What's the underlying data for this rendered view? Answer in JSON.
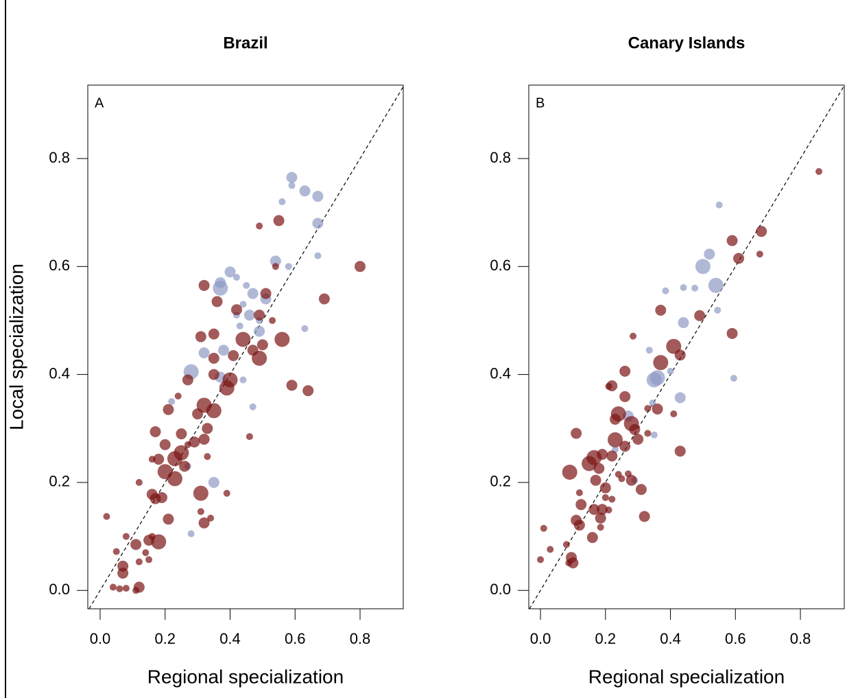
{
  "chart_data": [
    {
      "type": "scatter",
      "title": "Brazil",
      "panel_label": "A",
      "xlabel": "Regional specialization",
      "ylabel": "Local specialization",
      "xlim": [
        -0.038,
        0.933
      ],
      "ylim": [
        -0.034,
        0.936
      ],
      "xticks": [
        {
          "value": 0,
          "label": "0.0"
        },
        0.2,
        0.4,
        0.6,
        0.8
      ],
      "yticks": [
        {
          "value": 0,
          "label": "0.0"
        },
        0.2,
        0.4,
        0.6,
        0.8
      ],
      "identity_line": true,
      "alpha": 0.7,
      "series": [
        {
          "color": "#8f9ac4",
          "x": [
            0.59,
            0.63,
            0.67,
            0.59,
            0.56,
            0.67,
            0.54,
            0.58,
            0.67,
            0.4,
            0.42,
            0.37,
            0.37,
            0.45,
            0.47,
            0.51,
            0.44,
            0.42,
            0.46,
            0.49,
            0.49,
            0.43,
            0.63,
            0.32,
            0.38,
            0.44,
            0.28,
            0.22,
            0.47,
            0.35,
            0.27,
            0.28,
            0.37
          ],
          "values": [
            0.765,
            0.74,
            0.73,
            0.75,
            0.72,
            0.68,
            0.61,
            0.6,
            0.62,
            0.59,
            0.58,
            0.56,
            0.57,
            0.565,
            0.55,
            0.54,
            0.53,
            0.51,
            0.51,
            0.5,
            0.48,
            0.49,
            0.485,
            0.44,
            0.445,
            0.39,
            0.405,
            0.35,
            0.34,
            0.2,
            0.23,
            0.105,
            0.395
          ],
          "sizes": [
            2,
            2,
            2,
            1,
            1,
            2,
            2,
            1,
            1,
            2,
            1,
            3,
            2,
            1,
            2,
            2,
            1,
            1,
            2,
            1,
            2,
            1,
            1,
            2,
            2,
            1,
            3,
            1,
            1,
            2,
            1,
            1,
            2
          ]
        },
        {
          "color": "#7a1414",
          "x": [
            0.8,
            0.55,
            0.49,
            0.54,
            0.69,
            0.51,
            0.32,
            0.36,
            0.42,
            0.49,
            0.53,
            0.44,
            0.56,
            0.5,
            0.47,
            0.41,
            0.49,
            0.35,
            0.31,
            0.35,
            0.4,
            0.39,
            0.35,
            0.27,
            0.59,
            0.64,
            0.35,
            0.32,
            0.21,
            0.24,
            0.3,
            0.33,
            0.17,
            0.25,
            0.29,
            0.32,
            0.2,
            0.27,
            0.25,
            0.18,
            0.23,
            0.26,
            0.2,
            0.23,
            0.16,
            0.33,
            0.31,
            0.39,
            0.16,
            0.19,
            0.17,
            0.12,
            0.21,
            0.32,
            0.31,
            0.34,
            0.02,
            0.18,
            0.11,
            0.08,
            0.15,
            0.16,
            0.14,
            0.05,
            0.07,
            0.07,
            0.12,
            0.15,
            0.04,
            0.06,
            0.08,
            0.12,
            0.11,
            0.46
          ],
          "values": [
            0.6,
            0.685,
            0.675,
            0.6,
            0.54,
            0.55,
            0.565,
            0.535,
            0.52,
            0.51,
            0.5,
            0.465,
            0.465,
            0.455,
            0.445,
            0.435,
            0.43,
            0.43,
            0.47,
            0.475,
            0.39,
            0.375,
            0.4,
            0.39,
            0.38,
            0.37,
            0.333,
            0.343,
            0.335,
            0.36,
            0.327,
            0.3,
            0.294,
            0.29,
            0.275,
            0.28,
            0.27,
            0.27,
            0.255,
            0.243,
            0.244,
            0.23,
            0.22,
            0.207,
            0.243,
            0.248,
            0.18,
            0.18,
            0.178,
            0.172,
            0.17,
            0.2,
            0.132,
            0.125,
            0.146,
            0.134,
            0.137,
            0.09,
            0.085,
            0.1,
            0.093,
            0.1,
            0.07,
            0.072,
            0.045,
            0.032,
            0.053,
            0.057,
            0.006,
            0.003,
            0.004,
            0.006,
            0.0,
            0.285
          ],
          "sizes": [
            2,
            2,
            1,
            1,
            2,
            2,
            2,
            2,
            2,
            2,
            1,
            3,
            3,
            2,
            2,
            2,
            3,
            2,
            2,
            2,
            3,
            3,
            2,
            2,
            2,
            2,
            3,
            3,
            2,
            1,
            2,
            2,
            2,
            2,
            2,
            2,
            2,
            1,
            3,
            2,
            3,
            2,
            3,
            3,
            1,
            1,
            3,
            1,
            2,
            2,
            2,
            1,
            2,
            2,
            1,
            1,
            1,
            3,
            2,
            1,
            2,
            1,
            1,
            1,
            2,
            2,
            1,
            1,
            1,
            1,
            1,
            2,
            1,
            1
          ]
        }
      ]
    },
    {
      "type": "scatter",
      "title": "Canary Islands",
      "panel_label": "B",
      "xlabel": "Regional specialization",
      "xlim": [
        -0.036,
        0.935
      ],
      "ylim": [
        -0.034,
        0.936
      ],
      "xticks": [
        {
          "value": 0,
          "label": "0.0"
        },
        0.2,
        0.4,
        0.6,
        0.8
      ],
      "yticks": [
        {
          "value": 0,
          "label": "0.0"
        },
        0.2,
        0.4,
        0.6,
        0.8
      ],
      "identity_line": true,
      "alpha": 0.7,
      "series": [
        {
          "color": "#8f9ac4",
          "x": [
            0.55,
            0.52,
            0.5,
            0.54,
            0.545,
            0.595,
            0.44,
            0.475,
            0.385,
            0.44,
            0.335,
            0.36,
            0.35,
            0.4,
            0.43,
            0.345,
            0.35,
            0.27,
            0.29,
            0.23
          ],
          "values": [
            0.714,
            0.623,
            0.6,
            0.565,
            0.519,
            0.393,
            0.561,
            0.56,
            0.555,
            0.496,
            0.445,
            0.394,
            0.39,
            0.406,
            0.357,
            0.347,
            0.288,
            0.323,
            0.204,
            0.261
          ],
          "sizes": [
            1,
            2,
            3,
            3,
            1,
            1,
            1,
            1,
            1,
            2,
            1,
            3,
            3,
            1,
            2,
            1,
            1,
            2,
            1,
            1
          ]
        },
        {
          "color": "#7a1414",
          "x": [
            0.857,
            0.68,
            0.59,
            0.61,
            0.675,
            0.59,
            0.49,
            0.41,
            0.43,
            0.37,
            0.37,
            0.285,
            0.26,
            0.22,
            0.26,
            0.33,
            0.36,
            0.41,
            0.24,
            0.23,
            0.28,
            0.29,
            0.33,
            0.3,
            0.23,
            0.26,
            0.19,
            0.165,
            0.15,
            0.22,
            0.18,
            0.24,
            0.27,
            0.28,
            0.2,
            0.17,
            0.25,
            0.31,
            0.09,
            0.12,
            0.125,
            0.2,
            0.22,
            0.165,
            0.19,
            0.21,
            0.185,
            0.32,
            0.11,
            0.12,
            0.185,
            0.16,
            0.11,
            0.08,
            0.01,
            0.03,
            0.0,
            0.095,
            0.1,
            0.087,
            0.43,
            0.21
          ],
          "values": [
            0.776,
            0.665,
            0.648,
            0.615,
            0.623,
            0.476,
            0.509,
            0.452,
            0.436,
            0.422,
            0.519,
            0.471,
            0.406,
            0.379,
            0.359,
            0.337,
            0.336,
            0.327,
            0.327,
            0.317,
            0.309,
            0.298,
            0.291,
            0.28,
            0.279,
            0.267,
            0.252,
            0.246,
            0.235,
            0.249,
            0.226,
            0.215,
            0.216,
            0.204,
            0.19,
            0.204,
            0.207,
            0.187,
            0.219,
            0.181,
            0.159,
            0.172,
            0.169,
            0.15,
            0.15,
            0.149,
            0.134,
            0.137,
            0.13,
            0.121,
            0.117,
            0.098,
            0.291,
            0.085,
            0.115,
            0.076,
            0.057,
            0.061,
            0.051,
            0.051,
            0.258,
            0.378
          ],
          "sizes": [
            1,
            2,
            2,
            2,
            1,
            2,
            2,
            3,
            2,
            3,
            2,
            1,
            2,
            2,
            2,
            1,
            2,
            1,
            3,
            2,
            3,
            2,
            1,
            2,
            3,
            2,
            2,
            3,
            3,
            2,
            2,
            1,
            1,
            2,
            2,
            2,
            1,
            2,
            3,
            1,
            2,
            1,
            1,
            2,
            2,
            1,
            2,
            2,
            2,
            2,
            1,
            2,
            2,
            1,
            1,
            1,
            1,
            2,
            2,
            1,
            2,
            1
          ]
        }
      ]
    }
  ]
}
